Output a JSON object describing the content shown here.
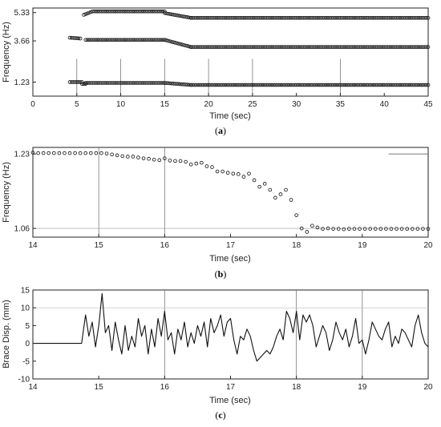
{
  "figure": {
    "panels": [
      {
        "label_open": "(",
        "label_letter": "a",
        "label_close": ")"
      },
      {
        "label_open": "(",
        "label_letter": "b",
        "label_close": ")"
      },
      {
        "label_open": "(",
        "label_letter": "c",
        "label_close": ")"
      }
    ]
  },
  "chart_data": [
    {
      "type": "scatter",
      "panel": "a",
      "xlabel": "Time (sec)",
      "ylabel": "Frequency (Hz)",
      "xlim": [
        0,
        45
      ],
      "ylim": [
        0.4,
        5.6
      ],
      "xticks": [
        0,
        5,
        10,
        15,
        20,
        25,
        30,
        35,
        40,
        45
      ],
      "yticks": [
        1.23,
        3.66,
        5.33
      ],
      "ytick_labels": [
        "1.23",
        "3.66",
        "5.33"
      ],
      "vertical_lines": [
        5,
        10,
        15,
        20,
        25,
        35
      ],
      "vertical_line_range": [
        0.4,
        2.6
      ],
      "marker": "open-circle",
      "series": [
        {
          "segments": [
            {
              "x_start": 4.2,
              "x_end": 5.6,
              "y_start": 1.23,
              "y_end": 1.23,
              "step": 0.2
            },
            {
              "x_start": 5.6,
              "x_end": 6.0,
              "y_start": 1.12,
              "y_end": 1.12,
              "step": 0.2
            },
            {
              "x_start": 6.0,
              "x_end": 15.0,
              "y_start": 1.18,
              "y_end": 1.18,
              "step": 0.2
            },
            {
              "x_start": 15.0,
              "x_end": 18.0,
              "y_start": 1.18,
              "y_end": 1.06,
              "step": 0.2
            },
            {
              "x_start": 18.0,
              "x_end": 45.0,
              "y_start": 1.06,
              "y_end": 1.06,
              "step": 0.2
            }
          ]
        },
        {
          "segments": [
            {
              "x_start": 4.2,
              "x_end": 5.4,
              "y_start": 3.85,
              "y_end": 3.8,
              "step": 0.2
            },
            {
              "x_start": 6.0,
              "x_end": 15.0,
              "y_start": 3.72,
              "y_end": 3.72,
              "step": 0.2
            },
            {
              "x_start": 15.0,
              "x_end": 18.0,
              "y_start": 3.72,
              "y_end": 3.3,
              "step": 0.2
            },
            {
              "x_start": 18.0,
              "x_end": 45.0,
              "y_start": 3.3,
              "y_end": 3.3,
              "step": 0.2
            }
          ]
        },
        {
          "segments": [
            {
              "x_start": 5.8,
              "x_end": 6.8,
              "y_start": 5.2,
              "y_end": 5.4,
              "step": 0.2
            },
            {
              "x_start": 7.0,
              "x_end": 15.0,
              "y_start": 5.4,
              "y_end": 5.4,
              "step": 0.2
            },
            {
              "x_start": 15.0,
              "x_end": 18.0,
              "y_start": 5.3,
              "y_end": 5.02,
              "step": 0.2
            },
            {
              "x_start": 18.0,
              "x_end": 45.0,
              "y_start": 5.02,
              "y_end": 5.02,
              "step": 0.2
            }
          ]
        }
      ]
    },
    {
      "type": "scatter",
      "panel": "b",
      "xlabel": "Time (sec)",
      "ylabel": "Frequency (Hz)",
      "xlim": [
        14,
        20
      ],
      "ylim": [
        1.04,
        1.245
      ],
      "xticks": [
        14,
        15,
        16,
        17,
        18,
        19,
        20
      ],
      "yticks": [
        1.06,
        1.23
      ],
      "ytick_labels": [
        "1.06",
        "1.23"
      ],
      "vertical_lines": [
        15,
        16
      ],
      "horizontal_lines": [
        1.06
      ],
      "short_line": {
        "x": [
          19.4,
          20
        ],
        "y": 1.23
      },
      "marker": "open-circle",
      "x": [
        14.0,
        14.08,
        14.16,
        14.24,
        14.32,
        14.4,
        14.48,
        14.56,
        14.64,
        14.72,
        14.8,
        14.88,
        14.96,
        15.04,
        15.12,
        15.2,
        15.28,
        15.36,
        15.44,
        15.52,
        15.6,
        15.68,
        15.76,
        15.84,
        15.92,
        16.0,
        16.08,
        16.16,
        16.24,
        16.32,
        16.4,
        16.48,
        16.56,
        16.64,
        16.72,
        16.8,
        16.88,
        16.96,
        17.04,
        17.12,
        17.2,
        17.28,
        17.36,
        17.44,
        17.52,
        17.6,
        17.68,
        17.76,
        17.84,
        17.92,
        18.0,
        18.08,
        18.16,
        18.24,
        18.32,
        18.4,
        18.48,
        18.56,
        18.64,
        18.72,
        18.8,
        18.88,
        18.96,
        19.04,
        19.12,
        19.2,
        19.28,
        19.36,
        19.44,
        19.52,
        19.6,
        19.68,
        19.76,
        19.84,
        19.92,
        20.0
      ],
      "y": [
        1.233,
        1.232,
        1.232,
        1.232,
        1.232,
        1.232,
        1.232,
        1.232,
        1.232,
        1.232,
        1.232,
        1.232,
        1.232,
        1.232,
        1.231,
        1.229,
        1.227,
        1.225,
        1.224,
        1.224,
        1.222,
        1.22,
        1.219,
        1.217,
        1.216,
        1.22,
        1.215,
        1.214,
        1.214,
        1.212,
        1.206,
        1.208,
        1.21,
        1.202,
        1.2,
        1.19,
        1.19,
        1.187,
        1.185,
        1.184,
        1.178,
        1.185,
        1.17,
        1.155,
        1.162,
        1.148,
        1.13,
        1.138,
        1.148,
        1.125,
        1.09,
        1.06,
        1.052,
        1.066,
        1.062,
        1.059,
        1.06,
        1.059,
        1.059,
        1.058,
        1.059,
        1.059,
        1.059,
        1.059,
        1.059,
        1.059,
        1.059,
        1.059,
        1.059,
        1.059,
        1.059,
        1.059,
        1.059,
        1.059,
        1.059,
        1.059
      ]
    },
    {
      "type": "line",
      "panel": "c",
      "xlabel": "Time (sec)",
      "ylabel": "Brace Disp. (mm)",
      "xlim": [
        14,
        20
      ],
      "ylim": [
        -10,
        15
      ],
      "xticks": [
        14,
        15,
        16,
        17,
        18,
        19,
        20
      ],
      "yticks": [
        -10,
        -5,
        0,
        5,
        10,
        15
      ],
      "vertical_lines": [
        16,
        18,
        19
      ],
      "horizontal_lines": [
        10
      ],
      "x": [
        14.0,
        14.74,
        14.8,
        14.85,
        14.9,
        14.95,
        15.0,
        15.05,
        15.1,
        15.15,
        15.2,
        15.25,
        15.3,
        15.35,
        15.4,
        15.45,
        15.5,
        15.55,
        15.6,
        15.65,
        15.7,
        15.75,
        15.8,
        15.85,
        15.9,
        15.95,
        16.0,
        16.05,
        16.1,
        16.15,
        16.2,
        16.25,
        16.3,
        16.35,
        16.4,
        16.45,
        16.5,
        16.55,
        16.6,
        16.65,
        16.7,
        16.75,
        16.8,
        16.85,
        16.9,
        16.95,
        17.0,
        17.05,
        17.1,
        17.15,
        17.2,
        17.25,
        17.3,
        17.35,
        17.4,
        17.45,
        17.5,
        17.55,
        17.6,
        17.65,
        17.7,
        17.75,
        17.8,
        17.85,
        17.9,
        17.95,
        18.0,
        18.05,
        18.1,
        18.15,
        18.2,
        18.25,
        18.3,
        18.35,
        18.4,
        18.45,
        18.5,
        18.55,
        18.6,
        18.65,
        18.7,
        18.75,
        18.8,
        18.85,
        18.9,
        18.95,
        19.0,
        19.05,
        19.1,
        19.15,
        19.2,
        19.25,
        19.3,
        19.35,
        19.4,
        19.45,
        19.5,
        19.55,
        19.6,
        19.65,
        19.7,
        19.75,
        19.8,
        19.85,
        19.9,
        19.95,
        20.0
      ],
      "y": [
        0,
        0,
        8,
        2,
        6,
        -1,
        5,
        14,
        3,
        5,
        -2,
        6,
        1,
        -3,
        5,
        -2,
        2,
        -1,
        7,
        2,
        5,
        -3,
        4,
        -1,
        7,
        2,
        9,
        1,
        3,
        -3,
        4,
        1,
        6,
        -1,
        3,
        0,
        5,
        2,
        6,
        -1,
        7,
        3,
        5,
        8,
        2,
        6,
        7,
        1,
        -3,
        2,
        1,
        4,
        2,
        -2,
        -5,
        -4,
        -3,
        -2,
        -3,
        -1,
        2,
        4,
        1,
        9,
        7,
        3,
        9,
        1,
        8,
        6,
        8,
        5,
        -1,
        2,
        5,
        3,
        -2,
        1,
        6,
        3,
        1,
        4,
        -1,
        2,
        7,
        0,
        1,
        -3,
        1,
        6,
        4,
        2,
        1,
        4,
        6,
        -1,
        2,
        0,
        4,
        3,
        1,
        -1,
        5,
        8,
        3,
        0,
        -1
      ]
    }
  ]
}
